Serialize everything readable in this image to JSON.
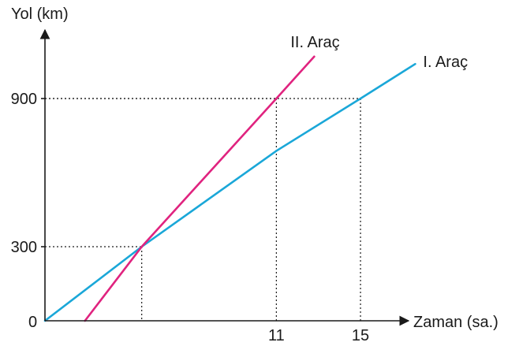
{
  "chart_data": {
    "type": "line",
    "ylabel": "Yol (km)",
    "xlabel": "Zaman (sa.)",
    "origin_label": "0",
    "x_ticks": [
      {
        "value": 11,
        "label": "11"
      },
      {
        "value": 15,
        "label": "15"
      }
    ],
    "y_ticks": [
      {
        "value": 300,
        "label": "300"
      },
      {
        "value": 900,
        "label": "900"
      }
    ],
    "xlim": [
      0,
      17.9
    ],
    "ylim": [
      0,
      1100
    ],
    "guides": [
      {
        "x": 4.6,
        "y": 300
      },
      {
        "x": 11,
        "y": 900
      },
      {
        "x": 15,
        "y": 900
      }
    ],
    "series": [
      {
        "name": "I. Araç",
        "color": "#1aa7d8",
        "points": [
          [
            0,
            0
          ],
          [
            4.6,
            300
          ],
          [
            11,
            688
          ],
          [
            15,
            900
          ],
          [
            17.6,
            1040
          ]
        ]
      },
      {
        "name": "II. Araç",
        "color": "#e0237f",
        "points": [
          [
            1.9,
            0
          ],
          [
            4.6,
            300
          ],
          [
            11,
            900
          ],
          [
            12.8,
            1070
          ]
        ]
      }
    ]
  }
}
